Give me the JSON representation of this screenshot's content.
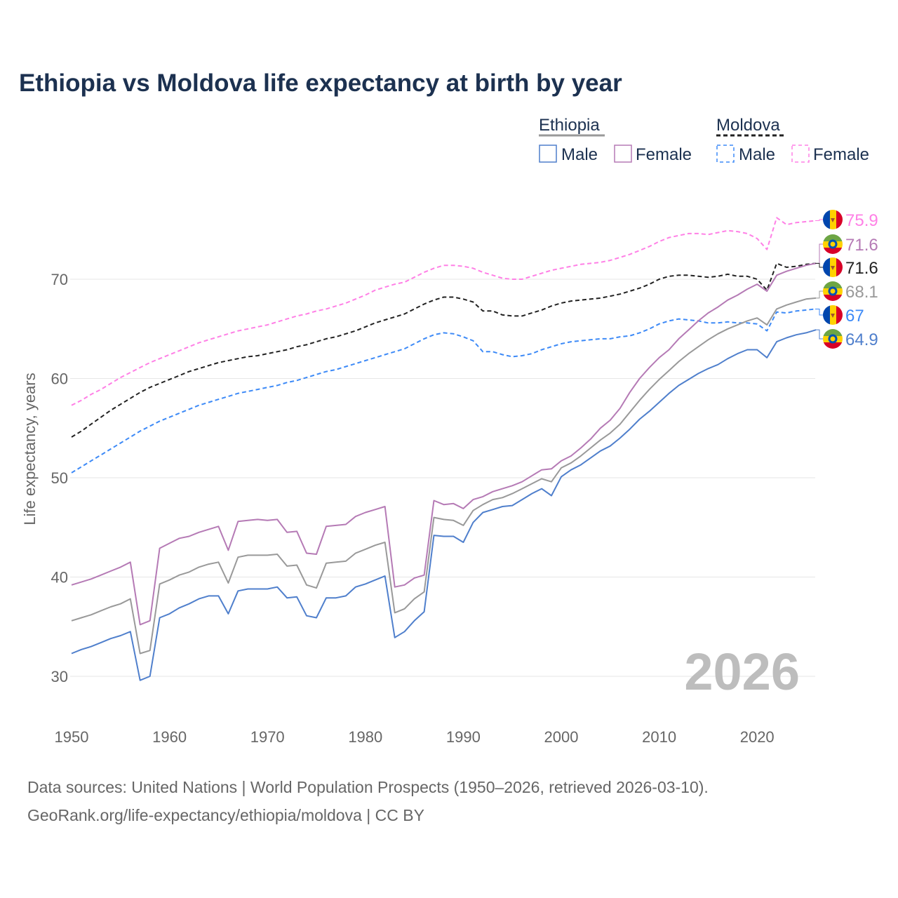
{
  "chart_data": {
    "type": "line",
    "title": "Ethiopia vs Moldova life expectancy at birth by year",
    "xlabel": "",
    "ylabel": "Life expectancy, years",
    "xlim": [
      1950,
      2026
    ],
    "ylim": [
      26,
      79
    ],
    "x_ticks": [
      "1950",
      "1960",
      "1970",
      "1980",
      "1990",
      "2000",
      "2010",
      "2020"
    ],
    "y_ticks": [
      "30",
      "40",
      "50",
      "60",
      "70"
    ],
    "grid": true,
    "watermark": "2026",
    "x_start": 1950,
    "x_end": 2026,
    "legend": {
      "placement": "top-right",
      "groups": [
        {
          "label": "Ethiopia",
          "items": [
            "Male",
            "Female"
          ]
        },
        {
          "label": "Moldova",
          "items": [
            "Male",
            "Female"
          ]
        }
      ]
    },
    "series": [
      {
        "name": "Moldova Female",
        "color": "#ff80e6",
        "dashed": true,
        "end_label": "75.9",
        "values": [
          57.3,
          57.8,
          58.4,
          58.9,
          59.5,
          60.1,
          60.6,
          61.1,
          61.6,
          62.0,
          62.4,
          62.8,
          63.2,
          63.6,
          63.9,
          64.2,
          64.5,
          64.8,
          65.0,
          65.2,
          65.4,
          65.7,
          66.0,
          66.3,
          66.5,
          66.8,
          67.0,
          67.3,
          67.6,
          68.0,
          68.4,
          68.9,
          69.2,
          69.5,
          69.7,
          70.2,
          70.7,
          71.1,
          71.4,
          71.4,
          71.3,
          71.1,
          70.7,
          70.4,
          70.1,
          70.0,
          70.0,
          70.3,
          70.6,
          70.9,
          71.1,
          71.3,
          71.5,
          71.6,
          71.7,
          71.9,
          72.2,
          72.5,
          72.9,
          73.3,
          73.8,
          74.2,
          74.4,
          74.6,
          74.6,
          74.5,
          74.7,
          74.9,
          74.8,
          74.6,
          74.1,
          73.0,
          76.2,
          75.5,
          75.7,
          75.8,
          75.9
        ]
      },
      {
        "name": "Ethiopia Female",
        "color": "#b57ab5",
        "dashed": false,
        "end_label": "71.6",
        "values": [
          39.2,
          39.5,
          39.8,
          40.2,
          40.6,
          41.0,
          41.5,
          35.2,
          35.6,
          42.9,
          43.4,
          43.9,
          44.1,
          44.5,
          44.8,
          45.1,
          42.7,
          45.6,
          45.7,
          45.8,
          45.7,
          45.8,
          44.5,
          44.6,
          42.4,
          42.3,
          45.1,
          45.2,
          45.3,
          46.1,
          46.5,
          46.8,
          47.1,
          39.0,
          39.2,
          39.9,
          40.2,
          47.7,
          47.3,
          47.4,
          46.9,
          47.8,
          48.1,
          48.6,
          48.9,
          49.2,
          49.6,
          50.2,
          50.8,
          50.9,
          51.7,
          52.2,
          53.0,
          53.9,
          55.0,
          55.8,
          57.0,
          58.6,
          60.0,
          61.1,
          62.1,
          62.9,
          64.0,
          64.9,
          65.8,
          66.6,
          67.2,
          67.9,
          68.4,
          69.0,
          69.5,
          68.8,
          70.4,
          70.8,
          71.1,
          71.4,
          71.6
        ]
      },
      {
        "name": "Moldova",
        "color": "#222222",
        "dashed": true,
        "end_label": "71.6",
        "values": [
          54.1,
          54.7,
          55.4,
          56.1,
          56.8,
          57.4,
          58.0,
          58.6,
          59.1,
          59.5,
          59.9,
          60.3,
          60.7,
          61.0,
          61.3,
          61.6,
          61.8,
          62.0,
          62.2,
          62.3,
          62.5,
          62.7,
          62.9,
          63.2,
          63.4,
          63.7,
          64.0,
          64.2,
          64.5,
          64.8,
          65.2,
          65.6,
          65.9,
          66.2,
          66.5,
          67.0,
          67.5,
          67.9,
          68.2,
          68.2,
          68.0,
          67.7,
          66.8,
          66.8,
          66.4,
          66.3,
          66.3,
          66.6,
          66.9,
          67.3,
          67.6,
          67.8,
          67.9,
          68.0,
          68.1,
          68.3,
          68.5,
          68.8,
          69.1,
          69.5,
          70.0,
          70.3,
          70.4,
          70.4,
          70.3,
          70.2,
          70.3,
          70.5,
          70.3,
          70.3,
          70.0,
          68.9,
          71.6,
          71.2,
          71.3,
          71.5,
          71.6
        ]
      },
      {
        "name": "Ethiopia",
        "color": "#999999",
        "dashed": false,
        "end_label": "68.1",
        "values": [
          35.6,
          35.9,
          36.2,
          36.6,
          37.0,
          37.3,
          37.8,
          32.3,
          32.6,
          39.3,
          39.7,
          40.2,
          40.5,
          41.0,
          41.3,
          41.5,
          39.4,
          42.0,
          42.2,
          42.2,
          42.2,
          42.3,
          41.1,
          41.2,
          39.2,
          38.9,
          41.4,
          41.5,
          41.6,
          42.4,
          42.8,
          43.2,
          43.5,
          36.4,
          36.8,
          37.8,
          38.5,
          46.0,
          45.8,
          45.7,
          45.2,
          46.7,
          47.3,
          47.8,
          48.0,
          48.4,
          48.9,
          49.4,
          49.9,
          49.6,
          51.0,
          51.5,
          52.2,
          53.0,
          53.8,
          54.5,
          55.4,
          56.6,
          57.8,
          58.9,
          59.9,
          60.8,
          61.7,
          62.5,
          63.2,
          63.9,
          64.5,
          65.0,
          65.4,
          65.8,
          66.1,
          65.4,
          67.0,
          67.4,
          67.7,
          68.0,
          68.1
        ]
      },
      {
        "name": "Moldova Male",
        "color": "#3d8af7",
        "dashed": true,
        "end_label": "67",
        "values": [
          50.5,
          51.1,
          51.7,
          52.3,
          52.9,
          53.5,
          54.1,
          54.7,
          55.2,
          55.7,
          56.1,
          56.5,
          56.9,
          57.3,
          57.6,
          57.9,
          58.2,
          58.5,
          58.7,
          58.9,
          59.1,
          59.3,
          59.6,
          59.8,
          60.1,
          60.4,
          60.7,
          60.9,
          61.2,
          61.5,
          61.8,
          62.1,
          62.4,
          62.7,
          63.0,
          63.5,
          64.0,
          64.4,
          64.6,
          64.5,
          64.2,
          63.8,
          62.7,
          62.7,
          62.4,
          62.2,
          62.3,
          62.5,
          62.9,
          63.2,
          63.5,
          63.7,
          63.8,
          63.9,
          64.0,
          64.0,
          64.2,
          64.3,
          64.6,
          65.0,
          65.5,
          65.8,
          66.0,
          65.9,
          65.8,
          65.6,
          65.6,
          65.7,
          65.6,
          65.6,
          65.5,
          64.8,
          66.7,
          66.6,
          66.8,
          66.9,
          67.0
        ]
      },
      {
        "name": "Ethiopia Male",
        "color": "#4f7fcc",
        "dashed": false,
        "end_label": "64.9",
        "values": [
          32.3,
          32.7,
          33.0,
          33.4,
          33.8,
          34.1,
          34.5,
          29.6,
          30.0,
          35.9,
          36.3,
          36.9,
          37.3,
          37.8,
          38.1,
          38.1,
          36.3,
          38.6,
          38.8,
          38.8,
          38.8,
          39.0,
          37.9,
          38.0,
          36.1,
          35.9,
          37.9,
          37.9,
          38.1,
          39.0,
          39.3,
          39.7,
          40.1,
          33.9,
          34.5,
          35.6,
          36.5,
          44.2,
          44.1,
          44.1,
          43.5,
          45.5,
          46.5,
          46.8,
          47.1,
          47.2,
          47.8,
          48.4,
          48.9,
          48.2,
          50.1,
          50.8,
          51.3,
          52.0,
          52.7,
          53.2,
          54.0,
          54.9,
          55.9,
          56.7,
          57.6,
          58.5,
          59.3,
          59.9,
          60.5,
          61.0,
          61.4,
          62.0,
          62.5,
          62.9,
          62.9,
          62.1,
          63.7,
          64.1,
          64.4,
          64.6,
          64.9
        ]
      }
    ]
  },
  "footer": {
    "line1": "Data sources: United Nations | World Population Prospects (1950–2026, retrieved 2026-03-10).",
    "line2": "GeoRank.org/life-expectancy/ethiopia/moldova | CC BY"
  }
}
